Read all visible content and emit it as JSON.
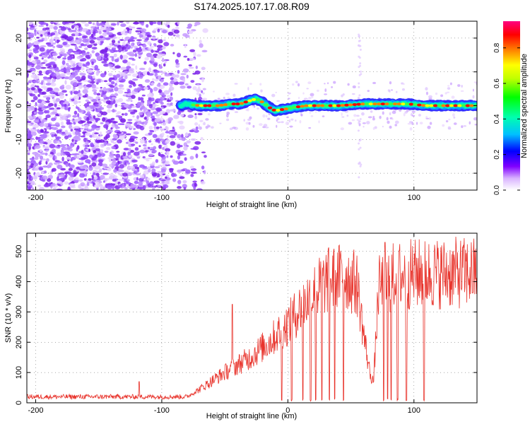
{
  "title": "S174.2025.107.17.08.R09",
  "chart_data": [
    {
      "type": "heatmap",
      "xlabel": "Height of straight line (km)",
      "ylabel": "Frequency (Hz)",
      "xlim": [
        -207,
        150
      ],
      "ylim": [
        -25,
        25
      ],
      "x_ticks": [
        -200,
        -100,
        0,
        100
      ],
      "y_ticks": [
        -20,
        -10,
        0,
        10,
        20
      ],
      "grid": true,
      "colorbar": {
        "label": "Normalized spectral amplitude",
        "range": [
          0.0,
          0.95
        ],
        "ticks": [
          "0.0",
          "0.2",
          "0.4",
          "0.6",
          "0.8"
        ],
        "colormap": [
          "#ffffff",
          "#d9b3ff",
          "#8000ff",
          "#0000ff",
          "#00c0ff",
          "#00ffb0",
          "#00ff00",
          "#c0ff00",
          "#ffff00",
          "#ff8000",
          "#ff0000",
          "#ff0080"
        ]
      },
      "noise_region": {
        "x": [
          -207,
          -75
        ],
        "y": [
          -25,
          25
        ]
      },
      "ridge": [
        {
          "x": -82,
          "y": 0.5
        },
        {
          "x": -70,
          "y": 0.0
        },
        {
          "x": -55,
          "y": 0.0
        },
        {
          "x": -45,
          "y": 0.5
        },
        {
          "x": -38,
          "y": 0.5
        },
        {
          "x": -30,
          "y": 1.5
        },
        {
          "x": -25,
          "y": 2.0
        },
        {
          "x": -20,
          "y": 1.0
        },
        {
          "x": -15,
          "y": -0.5
        },
        {
          "x": -10,
          "y": -1.5
        },
        {
          "x": -2,
          "y": -1.0
        },
        {
          "x": 5,
          "y": -0.5
        },
        {
          "x": 15,
          "y": 0.0
        },
        {
          "x": 40,
          "y": 0.0
        },
        {
          "x": 60,
          "y": 0.5
        },
        {
          "x": 75,
          "y": 0.5
        },
        {
          "x": 95,
          "y": 0.5
        },
        {
          "x": 110,
          "y": 0.0
        },
        {
          "x": 150,
          "y": 0.0
        }
      ]
    },
    {
      "type": "line",
      "xlabel": "Height of straight line (km)",
      "ylabel": "SNR (10 * v/v)",
      "xlim": [
        -207,
        150
      ],
      "ylim": [
        0,
        560
      ],
      "x_ticks": [
        -200,
        -100,
        0,
        100
      ],
      "y_ticks": [
        0,
        100,
        200,
        300,
        400,
        500
      ],
      "grid": true,
      "color": "#e8322a",
      "trend": [
        {
          "x": -207,
          "y": 20
        },
        {
          "x": -80,
          "y": 20
        },
        {
          "x": -70,
          "y": 45
        },
        {
          "x": -50,
          "y": 100
        },
        {
          "x": -30,
          "y": 150
        },
        {
          "x": -15,
          "y": 200
        },
        {
          "x": 0,
          "y": 260
        },
        {
          "x": 15,
          "y": 340
        },
        {
          "x": 30,
          "y": 400
        },
        {
          "x": 45,
          "y": 420
        },
        {
          "x": 55,
          "y": 390
        },
        {
          "x": 60,
          "y": 230
        },
        {
          "x": 65,
          "y": 100
        },
        {
          "x": 68,
          "y": 70
        },
        {
          "x": 72,
          "y": 380
        },
        {
          "x": 85,
          "y": 420
        },
        {
          "x": 100,
          "y": 425
        },
        {
          "x": 150,
          "y": 430
        }
      ],
      "dropouts": [
        -5,
        3,
        12,
        18,
        22,
        27,
        33,
        37,
        44,
        76,
        79,
        82,
        87,
        94,
        108
      ]
    }
  ]
}
